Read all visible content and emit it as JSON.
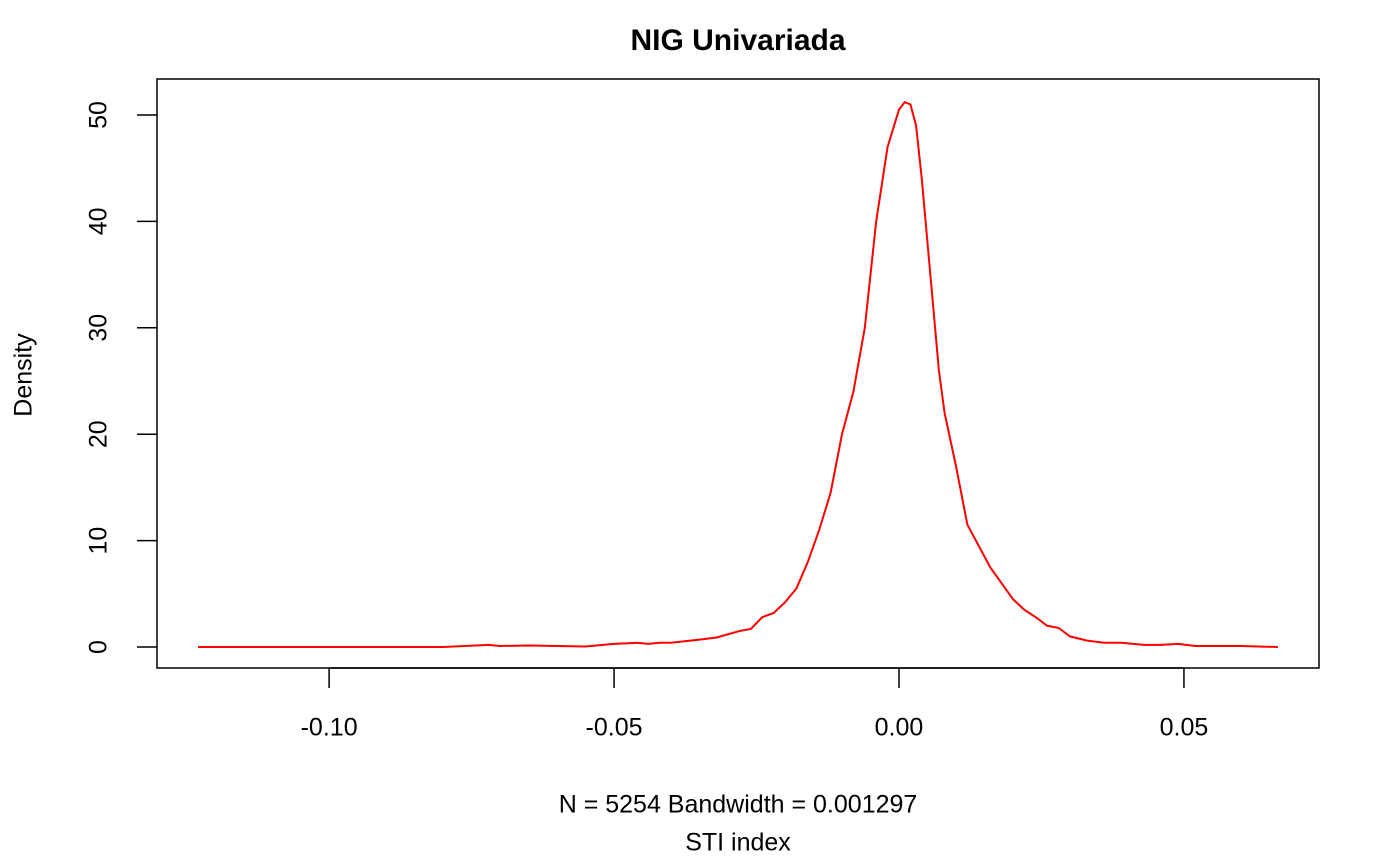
{
  "chart_data": {
    "type": "line",
    "title": "NIG Univariada",
    "subtitle": "N = 5254   Bandwidth = 0.001297",
    "x_label": "STI index",
    "y_label": "Density",
    "x": [
      -0.123,
      -0.11,
      -0.1,
      -0.09,
      -0.08,
      -0.072,
      -0.07,
      -0.065,
      -0.06,
      -0.055,
      -0.05,
      -0.046,
      -0.044,
      -0.042,
      -0.04,
      -0.035,
      -0.032,
      -0.03,
      -0.028,
      -0.026,
      -0.024,
      -0.022,
      -0.02,
      -0.018,
      -0.016,
      -0.014,
      -0.012,
      -0.01,
      -0.008,
      -0.006,
      -0.005,
      -0.004,
      -0.002,
      0,
      0.001,
      0.002,
      0.003,
      0.004,
      0.005,
      0.006,
      0.007,
      0.008,
      0.01,
      0.012,
      0.014,
      0.016,
      0.018,
      0.02,
      0.022,
      0.024,
      0.026,
      0.028,
      0.03,
      0.033,
      0.036,
      0.039,
      0.043,
      0.046,
      0.049,
      0.052,
      0.056,
      0.06,
      0.0665
    ],
    "series": [
      {
        "name": "density",
        "color": "#ff0000",
        "values": [
          0,
          0,
          0,
          0,
          0,
          0.2,
          0.1,
          0.15,
          0.1,
          0.05,
          0.3,
          0.4,
          0.3,
          0.4,
          0.4,
          0.7,
          0.9,
          1.2,
          1.5,
          1.7,
          2.8,
          3.2,
          4.2,
          5.5,
          8,
          11,
          14.5,
          20,
          24,
          30,
          35,
          40,
          47,
          50.5,
          51.2,
          51,
          49,
          44,
          38,
          32,
          26,
          22,
          17,
          11.5,
          9.5,
          7.5,
          6,
          4.5,
          3.5,
          2.8,
          2,
          1.8,
          1,
          0.6,
          0.4,
          0.4,
          0.2,
          0.2,
          0.3,
          0.1,
          0.1,
          0.1,
          0
        ]
      }
    ],
    "xlim": [
      -0.1302,
      0.0737
    ],
    "ylim": [
      -1.97,
      53.38
    ],
    "xticks": [
      {
        "value": -0.1,
        "label": "-0.10"
      },
      -0.05,
      {
        "value": 0,
        "label": "0.00"
      },
      0.05
    ],
    "yticks": [
      0,
      10,
      20,
      30,
      40,
      50
    ]
  }
}
